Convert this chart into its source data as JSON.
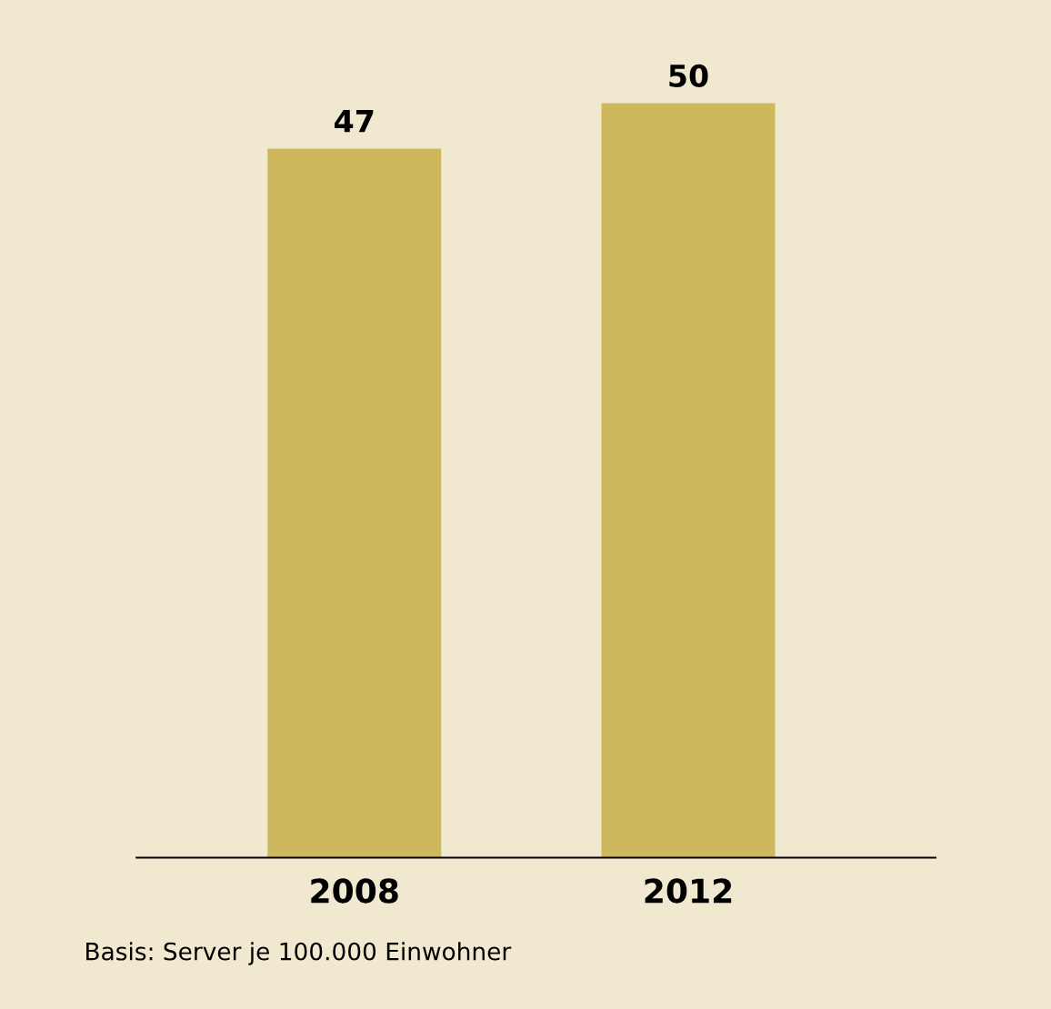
{
  "chart_data": {
    "type": "bar",
    "categories": [
      "2008",
      "2012"
    ],
    "values": [
      47,
      50
    ],
    "color": "#cdb85e",
    "data_labels": true,
    "grid": false,
    "legend": false,
    "annotations": [
      "Basis: Server je 100.000 Einwohner"
    ]
  }
}
